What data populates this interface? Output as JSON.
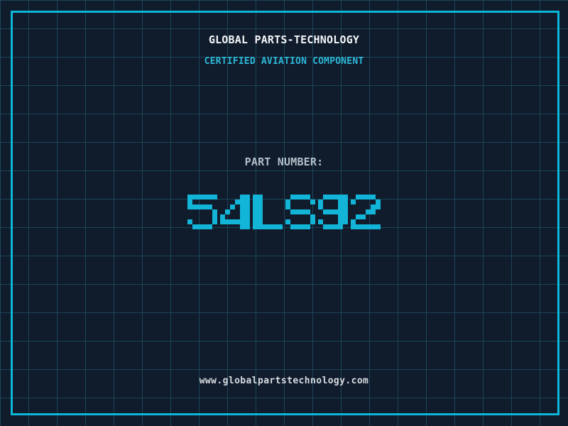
{
  "page": {
    "title": "GLOBAL PARTS-TECHNOLOGY",
    "subtitle": "CERTIFIED AVIATION COMPONENT",
    "part_label": "PART NUMBER:",
    "part_number": "54LS92",
    "website": "www.globalpartstechnology.com"
  },
  "colors": {
    "background": "#101b2c",
    "grid_line": "#1a4758",
    "border": "#0cb7da",
    "accent_cyan": "#12b5d8",
    "subtitle_text": "#2db8d8",
    "title_text": "#f4f6f8",
    "label_text": "#b3bfc9",
    "url_text": "#d7dce1"
  }
}
